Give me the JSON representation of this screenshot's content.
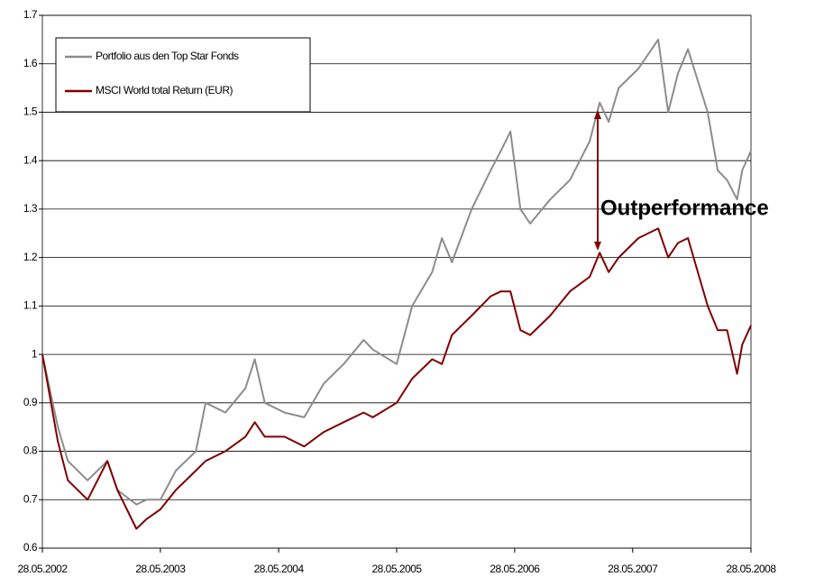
{
  "chart_data": {
    "type": "line",
    "annotation": "Outperformance",
    "x": [
      "28.05.2002",
      "15.07.2002",
      "15.08.2002",
      "15.10.2002",
      "15.12.2002",
      "15.01.2003",
      "15.03.2003",
      "15.04.2003",
      "28.05.2003",
      "15.07.2003",
      "15.09.2003",
      "15.10.2003",
      "15.12.2003",
      "15.02.2004",
      "15.03.2004",
      "15.04.2004",
      "15.06.2004",
      "15.08.2004",
      "15.10.2004",
      "15.12.2004",
      "15.02.2005",
      "15.03.2005",
      "28.05.2005",
      "15.07.2005",
      "15.09.2005",
      "15.10.2005",
      "15.11.2005",
      "15.01.2006",
      "15.03.2006",
      "15.04.2006",
      "15.05.2006",
      "15.06.2006",
      "15.07.2006",
      "15.09.2006",
      "15.11.2006",
      "15.01.2007",
      "15.02.2007",
      "15.03.2007",
      "15.04.2007",
      "15.06.2007",
      "15.08.2007",
      "15.09.2007",
      "15.10.2007",
      "15.11.2007",
      "15.01.2008",
      "15.02.2008",
      "15.03.2008",
      "15.04.2008",
      "01.05.2008",
      "28.05.2008"
    ],
    "series": [
      {
        "name": "Portfolio aus den Top Star Fonds",
        "color": "#8c8c8c",
        "values": [
          1.0,
          0.85,
          0.78,
          0.74,
          0.78,
          0.72,
          0.69,
          0.7,
          0.7,
          0.76,
          0.8,
          0.9,
          0.88,
          0.93,
          0.99,
          0.9,
          0.88,
          0.87,
          0.94,
          0.98,
          1.03,
          1.01,
          0.98,
          1.1,
          1.17,
          1.24,
          1.19,
          1.3,
          1.38,
          1.42,
          1.46,
          1.3,
          1.27,
          1.32,
          1.36,
          1.44,
          1.52,
          1.48,
          1.55,
          1.59,
          1.65,
          1.5,
          1.58,
          1.63,
          1.5,
          1.38,
          1.36,
          1.32,
          1.38,
          1.42
        ]
      },
      {
        "name": "MSCI World total Return (EUR)",
        "color": "#800000",
        "values": [
          1.0,
          0.82,
          0.74,
          0.7,
          0.78,
          0.72,
          0.64,
          0.66,
          0.68,
          0.72,
          0.76,
          0.78,
          0.8,
          0.83,
          0.86,
          0.83,
          0.83,
          0.81,
          0.84,
          0.86,
          0.88,
          0.87,
          0.9,
          0.95,
          0.99,
          0.98,
          1.04,
          1.08,
          1.12,
          1.13,
          1.13,
          1.05,
          1.04,
          1.08,
          1.13,
          1.16,
          1.21,
          1.17,
          1.2,
          1.24,
          1.26,
          1.2,
          1.23,
          1.24,
          1.1,
          1.05,
          1.05,
          0.96,
          1.02,
          1.06
        ]
      }
    ],
    "xlim": [
      "28.05.2002",
      "28.05.2008"
    ],
    "xticks": [
      "28.05.2002",
      "28.05.2003",
      "28.05.2004",
      "28.05.2005",
      "28.05.2006",
      "28.05.2007",
      "28.05.2008"
    ],
    "ylim": [
      0.6,
      1.7
    ],
    "yticks": [
      0.6,
      0.7,
      0.8,
      0.9,
      1,
      1.1,
      1.2,
      1.3,
      1.4,
      1.5,
      1.6,
      1.7
    ],
    "grid": true,
    "legend": "upper left"
  }
}
